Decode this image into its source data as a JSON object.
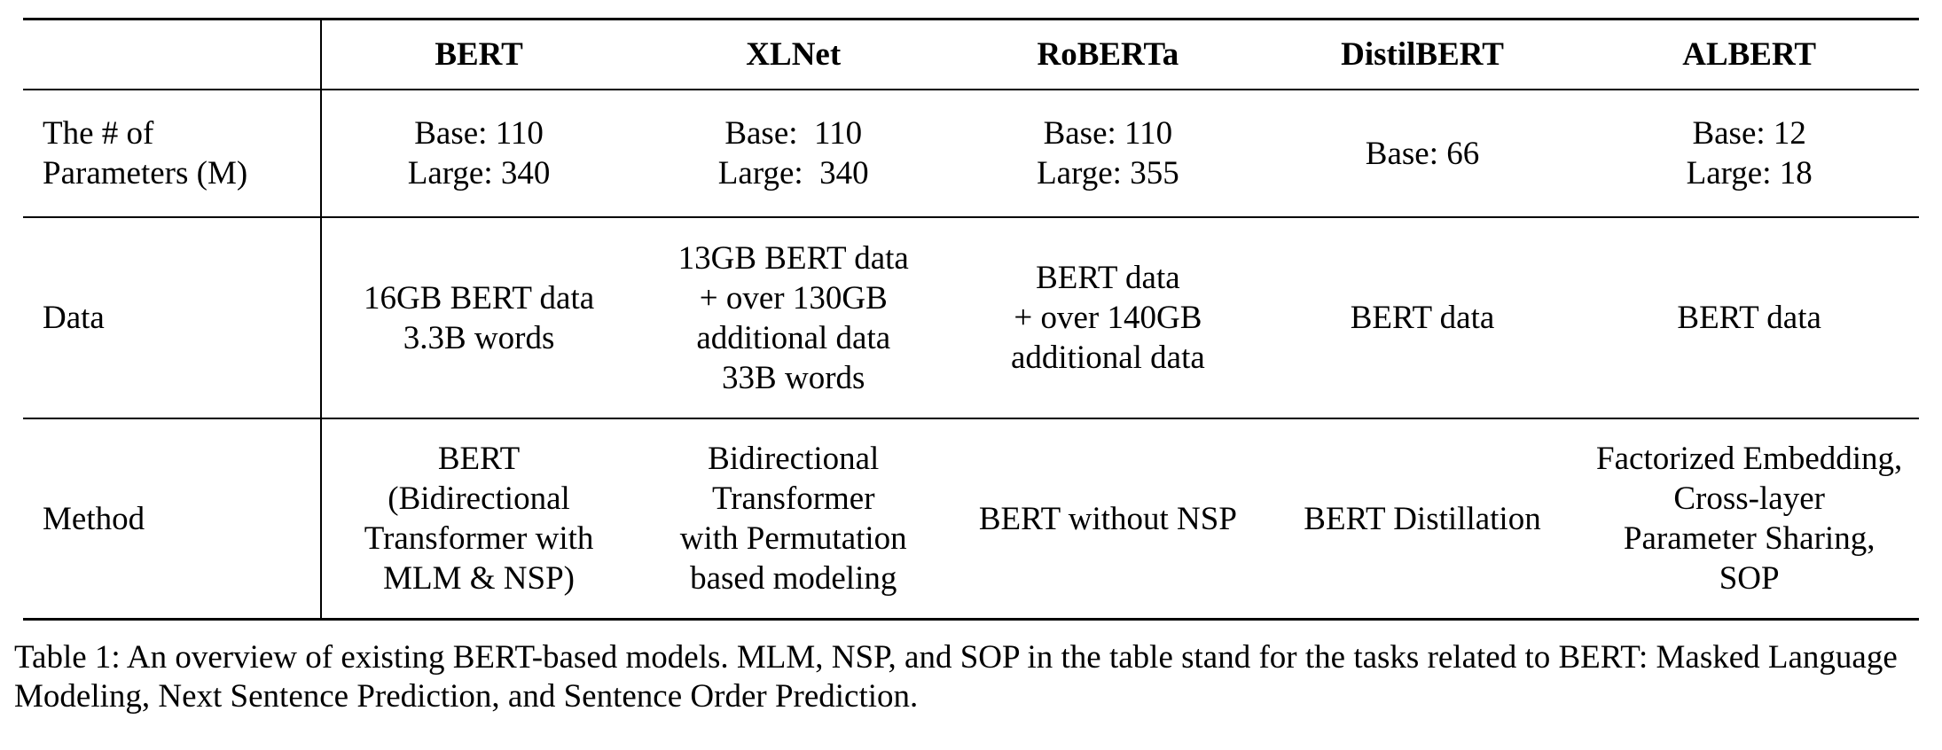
{
  "table": {
    "columns": [
      "",
      "BERT",
      "XLNet",
      "RoBERTa",
      "DistilBERT",
      "ALBERT"
    ],
    "rows": [
      {
        "label": "The # of\nParameters (M)",
        "cells": [
          "Base: 110\nLarge: 340",
          "Base:  110\nLarge:  340",
          "Base: 110\nLarge: 355",
          "Base: 66",
          "Base: 12\nLarge: 18"
        ]
      },
      {
        "label": "Data",
        "cells": [
          "16GB BERT data\n3.3B words",
          "13GB BERT data\n+ over 130GB\nadditional data\n33B words",
          "BERT data\n+ over 140GB\nadditional data",
          "BERT data",
          "BERT data"
        ]
      },
      {
        "label": "Method",
        "cells": [
          "BERT\n(Bidirectional\nTransformer with\nMLM & NSP)",
          "Bidirectional\nTransformer\nwith Permutation\nbased modeling",
          "BERT without NSP",
          "BERT Distillation",
          "Factorized Embedding,\nCross-layer\nParameter Sharing,\nSOP"
        ]
      }
    ]
  },
  "caption": "Table 1: An overview of existing BERT-based models. MLM, NSP, and SOP in the table stand for the tasks related to BERT: Masked Language Modeling, Next Sentence Prediction, and Sentence Order Prediction."
}
